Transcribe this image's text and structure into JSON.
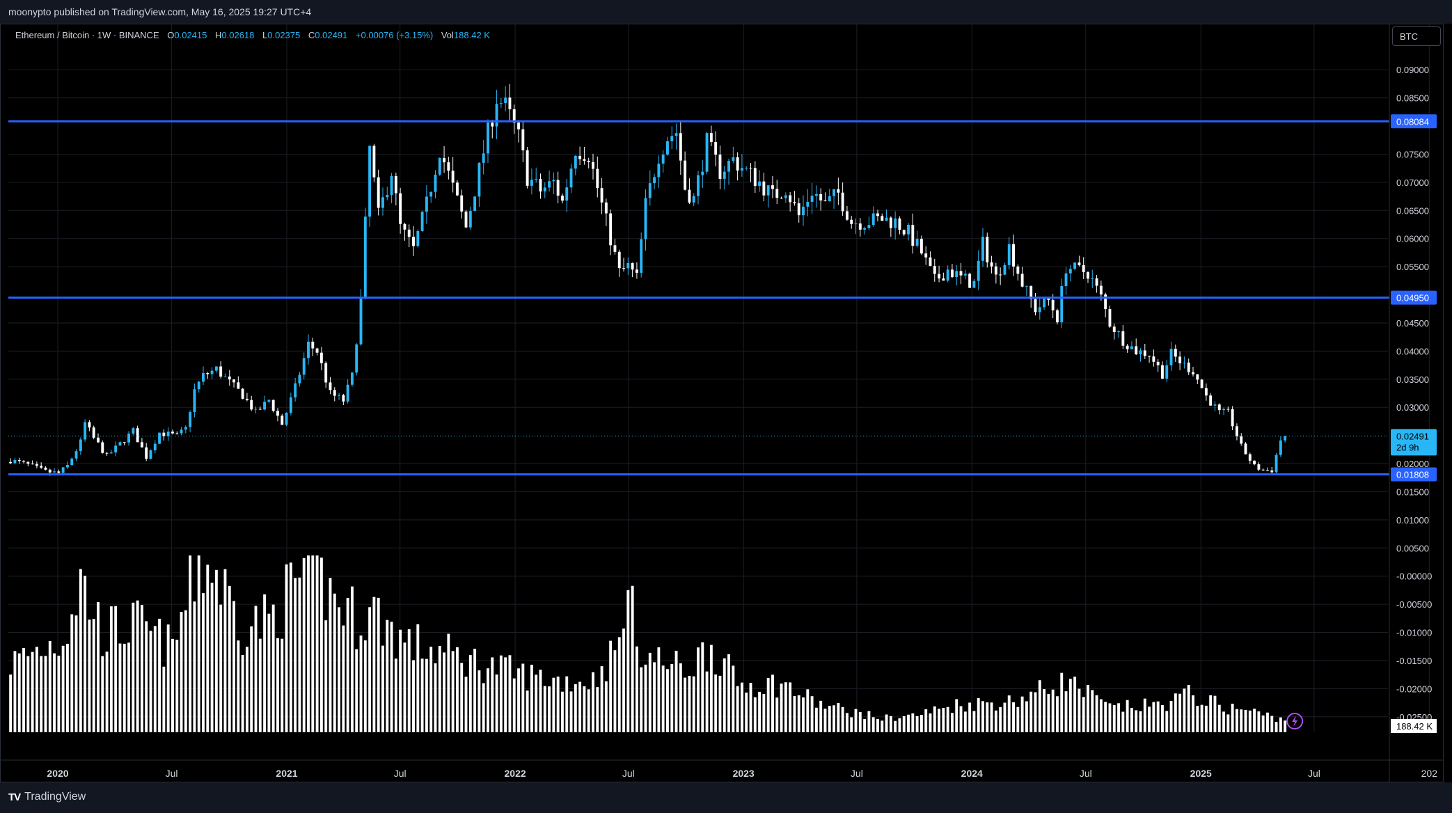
{
  "header": {
    "publisher_line": "moonypto published on TradingView.com, May 16, 2025 19:27 UTC+4"
  },
  "legend": {
    "symbol": "Ethereum / Bitcoin · 1W · BINANCE",
    "open_label": "O",
    "open": "0.02415",
    "high_label": "H",
    "high": "0.02618",
    "low_label": "L",
    "low": "0.02375",
    "close_label": "C",
    "close": "0.02491",
    "change": "+0.00076 (+3.15%)",
    "vol_label": "Vol",
    "vol": "188.42 K"
  },
  "currency_button": "BTC",
  "footer": {
    "brand": "TradingView"
  },
  "colors": {
    "up": "#29b6f6",
    "down": "#ffffff",
    "level_line": "#2962ff",
    "level_tag": "#2962ff",
    "price_tag": "#29b6f6",
    "grid": "#1c1f26"
  },
  "chart_data": {
    "type": "candlestick",
    "title": "Ethereum / Bitcoin · 1W · BINANCE",
    "price_axis": {
      "ticks": [
        "0.09000",
        "0.08500",
        "0.07500",
        "0.07000",
        "0.06500",
        "0.06000",
        "0.05500",
        "0.04500",
        "0.04000",
        "0.03500",
        "0.03000",
        "0.02000",
        "0.01500",
        "0.01000",
        "0.00500",
        "-0.00000",
        "-0.00500",
        "-0.01000",
        "-0.01500",
        "-0.02000",
        "-0.02500"
      ],
      "ylim": [
        -0.0275,
        0.0925
      ],
      "scale": "linear"
    },
    "time_axis": {
      "labels": [
        "2020",
        "Jul",
        "2021",
        "Jul",
        "2022",
        "Jul",
        "2023",
        "Jul",
        "2024",
        "Jul",
        "2025",
        "Jul",
        "202"
      ],
      "xlim": [
        "2019-10-14",
        "2025-10-27"
      ]
    },
    "horizontal_levels": [
      {
        "value": 0.08084,
        "label": "0.08084"
      },
      {
        "value": 0.0495,
        "label": "0.04950"
      },
      {
        "value": 0.01808,
        "label": "0.01808"
      }
    ],
    "last_price": {
      "value": 0.02491,
      "label": "0.02491",
      "countdown": "2d 9h"
    },
    "volume_last_label": "188.42 K",
    "close_series": {
      "start": "2019-10-14",
      "interval": "1W",
      "anchors": [
        [
          "2019-10-14",
          0.0206
        ],
        [
          "2019-11-11",
          0.0198
        ],
        [
          "2019-12-09",
          0.0186
        ],
        [
          "2019-12-30",
          0.0183
        ],
        [
          "2020-01-13",
          0.0196
        ],
        [
          "2020-02-03",
          0.0238
        ],
        [
          "2020-02-10",
          0.0272
        ],
        [
          "2020-02-24",
          0.0245
        ],
        [
          "2020-03-16",
          0.0213
        ],
        [
          "2020-04-06",
          0.0235
        ],
        [
          "2020-04-27",
          0.0258
        ],
        [
          "2020-05-18",
          0.0212
        ],
        [
          "2020-06-08",
          0.0255
        ],
        [
          "2020-07-06",
          0.0249
        ],
        [
          "2020-07-20",
          0.0262
        ],
        [
          "2020-08-03",
          0.033
        ],
        [
          "2020-08-17",
          0.0356
        ],
        [
          "2020-09-07",
          0.0368
        ],
        [
          "2020-09-28",
          0.0344
        ],
        [
          "2020-10-19",
          0.0322
        ],
        [
          "2020-11-09",
          0.029
        ],
        [
          "2020-11-30",
          0.0313
        ],
        [
          "2020-12-21",
          0.027
        ],
        [
          "2021-01-11",
          0.0335
        ],
        [
          "2021-02-01",
          0.0412
        ],
        [
          "2021-02-15",
          0.04
        ],
        [
          "2021-03-08",
          0.0324
        ],
        [
          "2021-03-29",
          0.0312
        ],
        [
          "2021-04-12",
          0.0355
        ],
        [
          "2021-04-26",
          0.049
        ],
        [
          "2021-05-10",
          0.076
        ],
        [
          "2021-05-24",
          0.064
        ],
        [
          "2021-06-14",
          0.072
        ],
        [
          "2021-06-28",
          0.062
        ],
        [
          "2021-07-19",
          0.058
        ],
        [
          "2021-08-09",
          0.066
        ],
        [
          "2021-08-30",
          0.076
        ],
        [
          "2021-09-20",
          0.069
        ],
        [
          "2021-10-11",
          0.062
        ],
        [
          "2021-11-08",
          0.0755
        ],
        [
          "2021-11-29",
          0.085
        ],
        [
          "2021-12-13",
          0.0835
        ],
        [
          "2022-01-03",
          0.078
        ],
        [
          "2022-01-17",
          0.071
        ],
        [
          "2022-02-07",
          0.0685
        ],
        [
          "2022-02-28",
          0.07
        ],
        [
          "2022-03-14",
          0.0665
        ],
        [
          "2022-04-04",
          0.076
        ],
        [
          "2022-04-25",
          0.075
        ],
        [
          "2022-05-16",
          0.066
        ],
        [
          "2022-06-13",
          0.054
        ],
        [
          "2022-06-27",
          0.055
        ],
        [
          "2022-07-11",
          0.053
        ],
        [
          "2022-07-25",
          0.066
        ],
        [
          "2022-08-15",
          0.075
        ],
        [
          "2022-08-29",
          0.078
        ],
        [
          "2022-09-12",
          0.079
        ],
        [
          "2022-09-26",
          0.069
        ],
        [
          "2022-10-10",
          0.067
        ],
        [
          "2022-10-31",
          0.077
        ],
        [
          "2022-11-21",
          0.072
        ],
        [
          "2022-12-12",
          0.074
        ],
        [
          "2023-01-02",
          0.072
        ],
        [
          "2023-01-23",
          0.07
        ],
        [
          "2023-02-13",
          0.0675
        ],
        [
          "2023-03-06",
          0.069
        ],
        [
          "2023-03-27",
          0.064
        ],
        [
          "2023-04-17",
          0.0685
        ],
        [
          "2023-05-08",
          0.066
        ],
        [
          "2023-05-29",
          0.068
        ],
        [
          "2023-06-19",
          0.063
        ],
        [
          "2023-07-10",
          0.063
        ],
        [
          "2023-08-07",
          0.0635
        ],
        [
          "2023-08-28",
          0.063
        ],
        [
          "2023-09-18",
          0.061
        ],
        [
          "2023-10-09",
          0.0575
        ],
        [
          "2023-10-30",
          0.0525
        ],
        [
          "2023-11-20",
          0.0545
        ],
        [
          "2023-12-11",
          0.053
        ],
        [
          "2024-01-01",
          0.052
        ],
        [
          "2024-01-15",
          0.059
        ],
        [
          "2024-02-05",
          0.053
        ],
        [
          "2024-02-26",
          0.0585
        ],
        [
          "2024-03-18",
          0.052
        ],
        [
          "2024-04-08",
          0.0475
        ],
        [
          "2024-04-29",
          0.049
        ],
        [
          "2024-05-13",
          0.046
        ],
        [
          "2024-05-27",
          0.055
        ],
        [
          "2024-06-10",
          0.0545
        ],
        [
          "2024-07-01",
          0.054
        ],
        [
          "2024-07-22",
          0.0495
        ],
        [
          "2024-08-05",
          0.045
        ],
        [
          "2024-08-26",
          0.042
        ],
        [
          "2024-09-16",
          0.04
        ],
        [
          "2024-10-07",
          0.0395
        ],
        [
          "2024-10-28",
          0.036
        ],
        [
          "2024-11-11",
          0.0395
        ],
        [
          "2024-12-02",
          0.0375
        ],
        [
          "2024-12-16",
          0.0365
        ],
        [
          "2025-01-06",
          0.032
        ],
        [
          "2025-01-27",
          0.029
        ],
        [
          "2025-02-10",
          0.029
        ],
        [
          "2025-03-03",
          0.023
        ],
        [
          "2025-03-24",
          0.0195
        ],
        [
          "2025-04-07",
          0.0188
        ],
        [
          "2025-04-21",
          0.0188
        ],
        [
          "2025-05-05",
          0.0242
        ],
        [
          "2025-05-12",
          0.0249
        ]
      ]
    },
    "volume_series": {
      "anchors": [
        [
          "2019-10-14",
          0.4
        ],
        [
          "2020-01-06",
          0.55
        ],
        [
          "2020-02-03",
          0.88
        ],
        [
          "2020-03-09",
          0.58
        ],
        [
          "2020-05-04",
          0.62
        ],
        [
          "2020-06-29",
          0.48
        ],
        [
          "2020-08-10",
          1.0
        ],
        [
          "2020-09-07",
          0.92
        ],
        [
          "2020-10-19",
          0.62
        ],
        [
          "2020-11-30",
          0.65
        ],
        [
          "2021-01-04",
          0.82
        ],
        [
          "2021-02-01",
          0.98
        ],
        [
          "2021-03-08",
          0.8
        ],
        [
          "2021-04-19",
          0.66
        ],
        [
          "2021-05-17",
          0.7
        ],
        [
          "2021-07-05",
          0.52
        ],
        [
          "2021-09-06",
          0.46
        ],
        [
          "2021-11-01",
          0.4
        ],
        [
          "2022-01-03",
          0.34
        ],
        [
          "2022-03-07",
          0.3
        ],
        [
          "2022-05-02",
          0.3
        ],
        [
          "2022-06-13",
          0.5
        ],
        [
          "2022-06-20",
          0.82
        ],
        [
          "2022-07-25",
          0.44
        ],
        [
          "2022-09-26",
          0.36
        ],
        [
          "2022-11-07",
          0.5
        ],
        [
          "2022-12-19",
          0.28
        ],
        [
          "2023-02-27",
          0.28
        ],
        [
          "2023-05-01",
          0.16
        ],
        [
          "2023-08-07",
          0.08
        ],
        [
          "2023-10-02",
          0.1
        ],
        [
          "2023-12-04",
          0.16
        ],
        [
          "2024-03-04",
          0.18
        ],
        [
          "2024-05-27",
          0.3
        ],
        [
          "2024-08-05",
          0.14
        ],
        [
          "2024-10-28",
          0.16
        ],
        [
          "2024-12-09",
          0.22
        ],
        [
          "2025-02-10",
          0.14
        ],
        [
          "2025-03-10",
          0.13
        ],
        [
          "2025-05-12",
          0.07
        ]
      ]
    }
  }
}
